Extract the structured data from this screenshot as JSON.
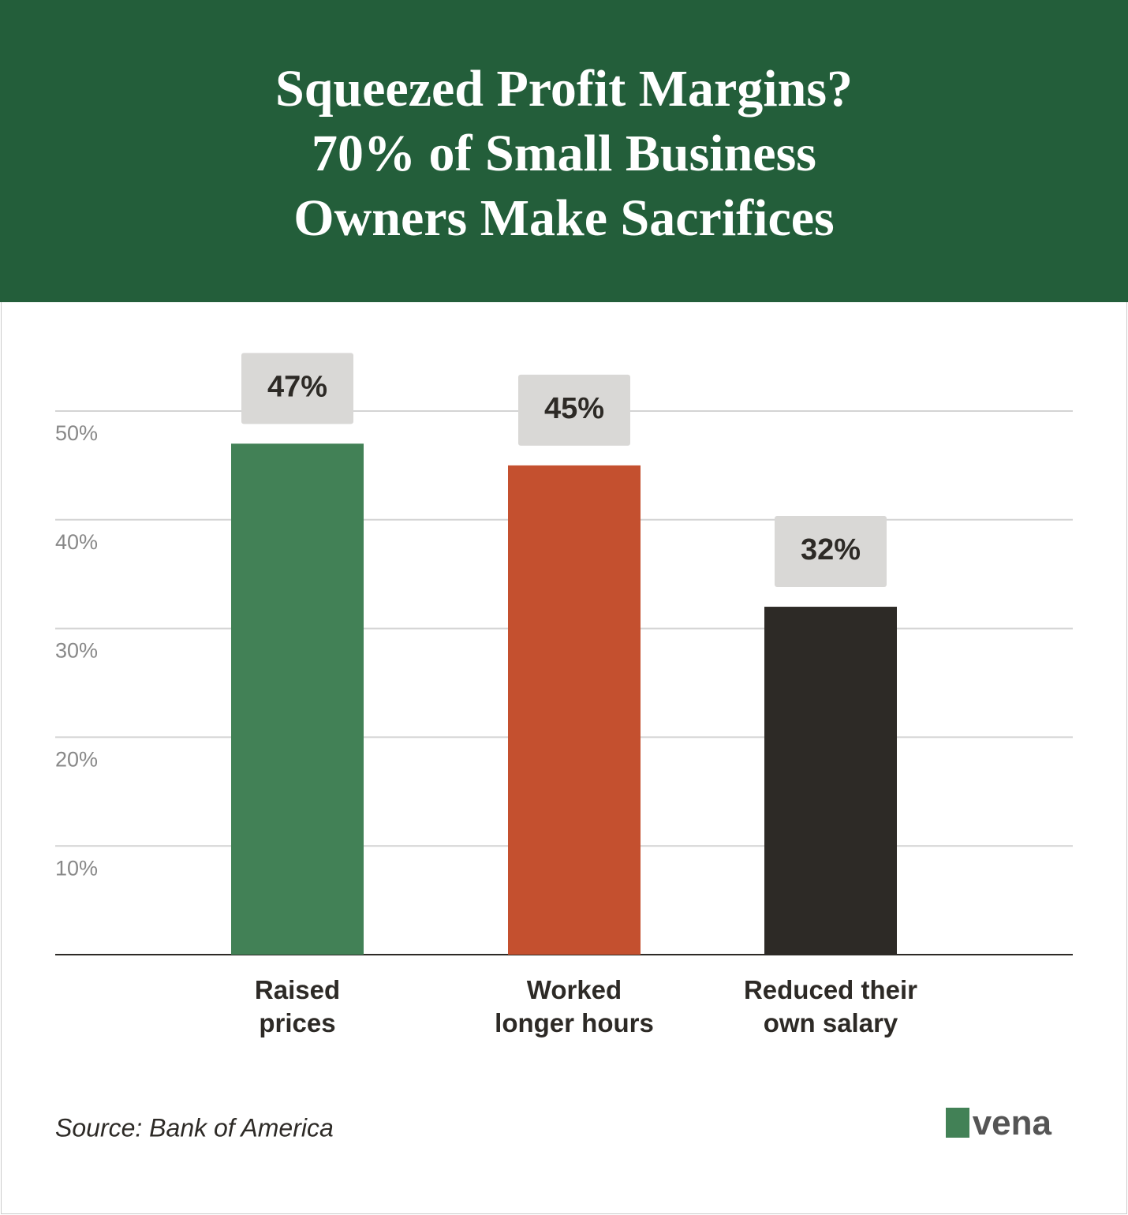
{
  "chart_data": {
    "type": "bar",
    "title": "Squeezed Profit Margins?\n70% of Small Business\nOwners Make Sacrifices",
    "categories": [
      "Raised\nprices",
      "Worked\nlonger hours",
      "Reduced their\nown salary"
    ],
    "values": [
      47,
      45,
      32
    ],
    "value_labels": [
      "47%",
      "45%",
      "32%"
    ],
    "colors": [
      "#428156",
      "#c4502f",
      "#2d2a26"
    ],
    "ylim": [
      0,
      50
    ],
    "yticks": [
      {
        "value": 10,
        "label": "10%"
      },
      {
        "value": 20,
        "label": "20%"
      },
      {
        "value": 30,
        "label": "30%"
      },
      {
        "value": 40,
        "label": "40%"
      },
      {
        "value": 50,
        "label": "50%"
      }
    ],
    "grid": true,
    "source": "Source: Bank of America",
    "logo": "vena"
  }
}
